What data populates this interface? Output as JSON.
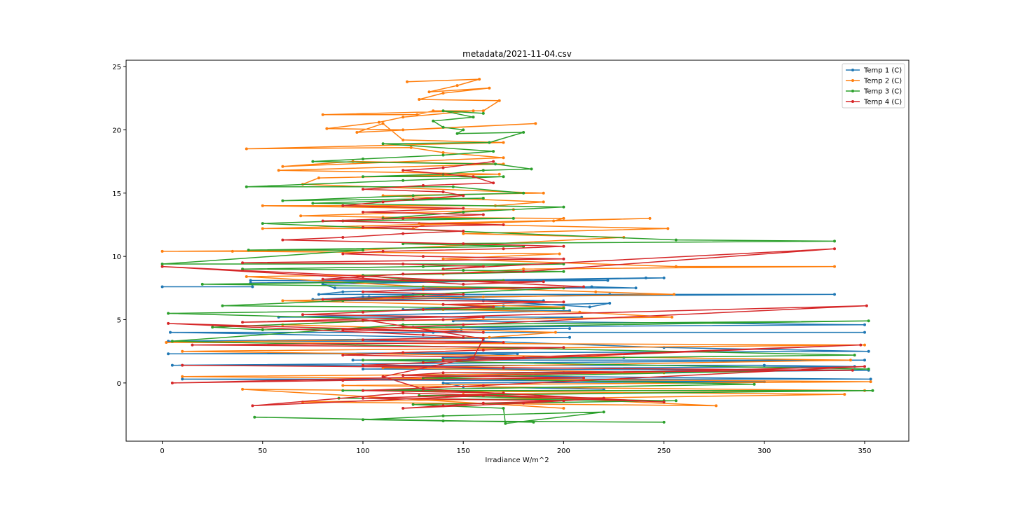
{
  "chart_data": {
    "type": "line",
    "title": "metadata/2021-11-04.csv",
    "xlabel": "Irradiance W/m^2",
    "ylabel": "",
    "xlim": [
      -18,
      372
    ],
    "ylim": [
      -4.6,
      25.5
    ],
    "x_ticks": [
      0,
      50,
      100,
      150,
      200,
      250,
      300,
      350
    ],
    "y_ticks": [
      0,
      5,
      10,
      15,
      20,
      25
    ],
    "grid": false,
    "legend_position": "top-right",
    "marker": "dot",
    "series": [
      {
        "name": "Temp 1 (C)",
        "color": "#1f77b4",
        "x": [
          0,
          45,
          44,
          222,
          44,
          241,
          250,
          80,
          86,
          236,
          214,
          90,
          78,
          223,
          85,
          190,
          103,
          120,
          125,
          335,
          100,
          75,
          160,
          213,
          223,
          170,
          120,
          203,
          58,
          209,
          145,
          350,
          125,
          203,
          149,
          135,
          350,
          4,
          140,
          203,
          3,
          160,
          250,
          352,
          3,
          177,
          140,
          230,
          95,
          350,
          5,
          300,
          345,
          100,
          352,
          200,
          120,
          353,
          10,
          300,
          140,
          150,
          220
        ],
        "y": [
          7.6,
          7.6,
          8.1,
          8.1,
          7.9,
          8.3,
          8.3,
          7.8,
          7.5,
          7.5,
          7.6,
          7.2,
          7.0,
          7.0,
          6.5,
          6.5,
          6.8,
          6.9,
          7.0,
          7.0,
          6.8,
          6.6,
          6.5,
          6.0,
          6.3,
          6.1,
          5.8,
          5.7,
          5.2,
          5.2,
          4.9,
          4.6,
          4.4,
          4.3,
          4.2,
          4.0,
          4.0,
          4.0,
          3.6,
          3.6,
          3.3,
          3.3,
          2.8,
          2.5,
          2.3,
          2.3,
          2.0,
          2.0,
          1.8,
          1.8,
          1.4,
          1.4,
          1.3,
          1.1,
          1.0,
          0.8,
          0.6,
          0.3,
          0.3,
          0.1,
          0.0,
          -0.3,
          -0.5
        ]
      },
      {
        "name": "Temp 2 (C)",
        "color": "#ff7f0e",
        "x": [
          122,
          158,
          147,
          133,
          163,
          140,
          128,
          168,
          160,
          135,
          127,
          80,
          155,
          120,
          108,
          82,
          120,
          186,
          97,
          110,
          120,
          170,
          42,
          124,
          140,
          170,
          60,
          95,
          170,
          58,
          168,
          78,
          70,
          190,
          110,
          190,
          166,
          50,
          175,
          69,
          110,
          200,
          195,
          130,
          125,
          50,
          243,
          128,
          252,
          150,
          230,
          100,
          0,
          35,
          198,
          140,
          256,
          335,
          180,
          140,
          42,
          130,
          216,
          255,
          160,
          60,
          200,
          140,
          208,
          254,
          100,
          60,
          196,
          163,
          100,
          2,
          350,
          10,
          343,
          110,
          250,
          10,
          353,
          90,
          350,
          150,
          276,
          70,
          340,
          40,
          200
        ],
        "y": [
          23.8,
          24.0,
          23.5,
          23.0,
          23.3,
          22.9,
          22.4,
          22.3,
          21.5,
          21.5,
          21.2,
          21.2,
          21.5,
          21.0,
          20.6,
          20.1,
          20.0,
          20.5,
          19.8,
          20.5,
          19.2,
          19.0,
          18.5,
          18.6,
          18.2,
          17.8,
          17.1,
          17.5,
          17.3,
          16.8,
          16.5,
          16.2,
          15.7,
          15.0,
          14.8,
          14.3,
          14.0,
          14.0,
          13.7,
          13.2,
          13.1,
          13.0,
          12.8,
          12.5,
          12.2,
          12.2,
          13.0,
          12.6,
          12.2,
          11.8,
          11.5,
          10.5,
          10.4,
          10.4,
          10.2,
          9.8,
          9.2,
          9.2,
          9.0,
          8.6,
          8.4,
          7.6,
          7.2,
          7.0,
          6.8,
          6.5,
          6.0,
          5.8,
          5.6,
          5.2,
          4.9,
          4.6,
          4.0,
          3.6,
          3.4,
          3.2,
          3.0,
          2.5,
          1.8,
          1.2,
          0.8,
          0.5,
          0.1,
          -0.2,
          -0.6,
          -0.9,
          -1.8,
          -1.5,
          -0.9,
          -0.5,
          -2.0
        ]
      },
      {
        "name": "Temp 3 (C)",
        "color": "#2ca02c",
        "x": [
          160,
          140,
          155,
          135,
          140,
          150,
          147,
          180,
          163,
          110,
          165,
          140,
          100,
          75,
          166,
          184,
          160,
          140,
          100,
          170,
          120,
          42,
          145,
          180,
          125,
          60,
          160,
          75,
          200,
          150,
          110,
          175,
          90,
          50,
          256,
          335,
          120,
          180,
          43,
          100,
          0,
          200,
          130,
          40,
          150,
          200,
          100,
          120,
          170,
          20,
          200,
          130,
          90,
          30,
          200,
          3,
          120,
          25,
          50,
          352,
          120,
          5,
          345,
          100,
          352,
          130,
          295,
          90,
          354,
          128,
          250,
          88,
          256,
          125,
          170,
          171,
          220,
          140,
          100,
          185,
          46,
          140,
          250
        ],
        "y": [
          21.3,
          21.5,
          21.0,
          20.7,
          20.2,
          20.0,
          19.7,
          19.8,
          19.0,
          18.9,
          18.3,
          18.0,
          17.7,
          17.5,
          17.3,
          16.9,
          16.8,
          16.5,
          16.3,
          16.3,
          16.0,
          15.5,
          15.5,
          15.0,
          14.8,
          14.4,
          14.6,
          14.2,
          13.9,
          13.5,
          13.0,
          13.0,
          12.8,
          12.6,
          11.3,
          11.2,
          11.0,
          10.8,
          10.5,
          10.5,
          9.4,
          9.4,
          9.2,
          9.0,
          8.9,
          8.8,
          8.5,
          8.2,
          8.1,
          7.8,
          7.5,
          7.0,
          6.5,
          6.1,
          5.9,
          5.5,
          5.0,
          4.4,
          4.2,
          4.9,
          4.6,
          3.3,
          2.2,
          1.8,
          1.1,
          0.4,
          -0.1,
          -0.6,
          -0.6,
          -1.0,
          -1.4,
          -1.2,
          -1.4,
          -1.7,
          -2.0,
          -3.2,
          -2.3,
          -2.6,
          -2.9,
          -3.1,
          -2.7,
          -3.0,
          -3.1
        ]
      },
      {
        "name": "Temp 4 (C)",
        "color": "#d62728",
        "x": [
          165,
          140,
          120,
          155,
          165,
          130,
          100,
          140,
          150,
          125,
          110,
          90,
          150,
          100,
          160,
          120,
          80,
          170,
          100,
          150,
          120,
          90,
          60,
          150,
          200,
          170,
          110,
          90,
          130,
          200,
          40,
          120,
          160,
          140,
          335,
          180,
          120,
          100,
          80,
          190,
          150,
          0,
          210,
          130,
          100,
          150,
          120,
          80,
          200,
          140,
          165,
          130,
          100,
          70,
          160,
          140,
          40,
          351,
          150,
          120,
          90,
          160,
          3,
          130,
          150,
          100,
          170,
          15,
          200,
          160,
          120,
          90,
          180,
          140,
          348,
          130,
          100,
          170,
          10,
          344,
          140,
          120,
          210,
          90,
          5,
          350,
          160,
          130,
          100,
          170,
          150,
          100,
          200,
          160,
          140,
          120,
          180,
          220,
          120,
          45,
          160,
          250,
          130,
          110,
          155,
          160,
          100
        ],
        "y": [
          17.5,
          17.0,
          16.8,
          16.3,
          15.8,
          15.6,
          15.3,
          15.1,
          14.8,
          14.5,
          14.3,
          14.0,
          13.8,
          13.5,
          13.3,
          13.0,
          12.8,
          12.5,
          12.3,
          12.0,
          11.8,
          11.5,
          11.3,
          11.0,
          10.8,
          10.6,
          10.4,
          10.2,
          10.0,
          9.8,
          9.5,
          9.4,
          9.2,
          9.0,
          10.6,
          8.8,
          8.6,
          8.4,
          8.2,
          8.0,
          7.8,
          9.2,
          7.6,
          7.4,
          7.2,
          7.0,
          6.8,
          6.6,
          6.4,
          6.2,
          6.0,
          5.8,
          5.6,
          5.4,
          5.2,
          5.0,
          4.8,
          6.1,
          4.6,
          4.4,
          4.2,
          4.0,
          4.7,
          3.8,
          3.6,
          3.4,
          3.2,
          3.0,
          2.8,
          2.6,
          2.4,
          2.2,
          2.0,
          1.8,
          3.0,
          1.6,
          1.4,
          1.2,
          1.4,
          1.0,
          0.8,
          0.6,
          0.4,
          0.2,
          0.0,
          1.3,
          -0.2,
          -0.4,
          -0.6,
          -0.8,
          -1.0,
          -1.2,
          -1.4,
          -1.6,
          -1.8,
          -2.0,
          -1.6,
          -1.2,
          -0.8,
          -1.8,
          -1.0,
          -1.5,
          -0.5,
          0.5,
          2.0,
          3.5,
          5.0
        ]
      }
    ]
  }
}
